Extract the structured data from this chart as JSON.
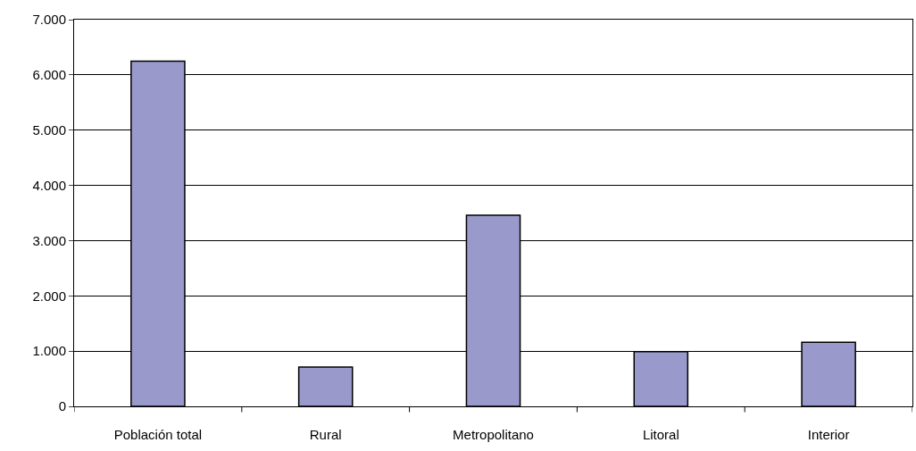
{
  "chart_data": {
    "type": "bar",
    "categories": [
      "Población total",
      "Rural",
      "Metropolitano",
      "Litoral",
      "Interior"
    ],
    "values": [
      6250,
      710,
      3460,
      990,
      1160
    ],
    "color": "#9999cc",
    "ylim": [
      0,
      7000
    ],
    "yticks": [
      {
        "value": 0,
        "label": "0"
      },
      {
        "value": 1000,
        "label": "1.000"
      },
      {
        "value": 2000,
        "label": "2.000"
      },
      {
        "value": 3000,
        "label": "3.000"
      },
      {
        "value": 4000,
        "label": "4.000"
      },
      {
        "value": 5000,
        "label": "5.000"
      },
      {
        "value": 6000,
        "label": "6.000"
      },
      {
        "value": 7000,
        "label": "7.000"
      }
    ],
    "grid": "y"
  }
}
